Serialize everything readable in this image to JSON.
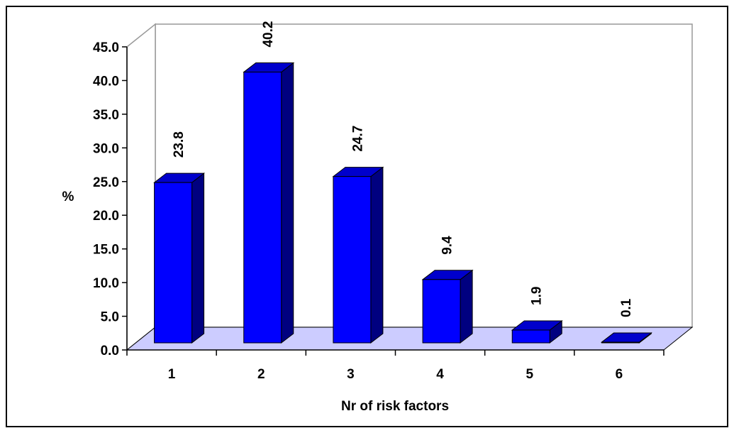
{
  "chart_data": {
    "type": "bar",
    "title": "",
    "xlabel": "Nr of risk factors",
    "ylabel": "%",
    "ylim": [
      0,
      45
    ],
    "yticks": [
      "0.0",
      "5.0",
      "10.0",
      "15.0",
      "20.0",
      "25.0",
      "30.0",
      "35.0",
      "40.0",
      "45.0"
    ],
    "categories": [
      "1",
      "2",
      "3",
      "4",
      "5",
      "6"
    ],
    "values": [
      23.8,
      40.2,
      24.7,
      9.4,
      1.9,
      0.1
    ],
    "data_labels": [
      "23.8",
      "40.2",
      "24.7",
      "9.4",
      "1.9",
      "0.1"
    ],
    "grid": false,
    "legend": "none",
    "style": "3d",
    "colors": {
      "bar_front": "#0000FF",
      "bar_side": "#000080",
      "bar_top": "#0000CC",
      "floor": "#CCCCFF",
      "frame": "#999999"
    }
  }
}
